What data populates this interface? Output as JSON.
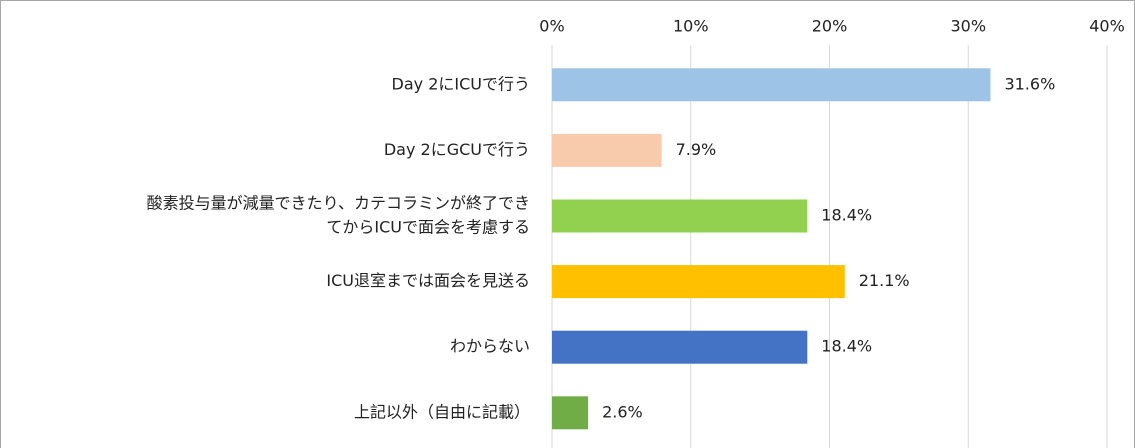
{
  "chart_data": {
    "type": "bar",
    "orientation": "horizontal",
    "categories": [
      "Day 2にICUで行う",
      "Day 2にGCUで行う",
      [
        "酸素投与量が減量できたり、カテコラミンが終了でき",
        "てからICUで面会を考慮する"
      ],
      "ICU退室までは面会を見送る",
      "わからない",
      "上記以外（自由に記載）"
    ],
    "values": [
      31.6,
      7.9,
      18.4,
      21.1,
      18.4,
      2.6
    ],
    "value_labels": [
      "31.6%",
      "7.9%",
      "18.4%",
      "21.1%",
      "18.4%",
      "2.6%"
    ],
    "colors": [
      "#9dc3e6",
      "#f8cbad",
      "#92d050",
      "#ffc000",
      "#4472c4",
      "#70ad47"
    ],
    "xlim": [
      0,
      40
    ],
    "xticks": [
      {
        "value": 0,
        "label": "0%"
      },
      {
        "value": 10,
        "label": "10%"
      },
      {
        "value": 20,
        "label": "20%"
      },
      {
        "value": 30,
        "label": "30%"
      },
      {
        "value": 40,
        "label": "40%"
      }
    ],
    "grid": true
  }
}
